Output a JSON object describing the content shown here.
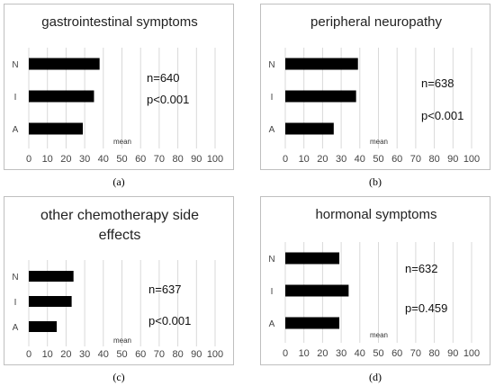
{
  "chart_data": [
    {
      "type": "bar",
      "orientation": "horizontal",
      "title": "gastrointestinal symptoms",
      "categories": [
        "N",
        "I",
        "A"
      ],
      "values": [
        38,
        35,
        29
      ],
      "xlim": [
        0,
        100
      ],
      "xticks": [
        0,
        10,
        20,
        30,
        40,
        50,
        60,
        70,
        80,
        90,
        100
      ],
      "xlabel": "mean",
      "grid": "vertical",
      "annotations": [
        "n=640",
        "p<0.001"
      ],
      "caption": "(a)"
    },
    {
      "type": "bar",
      "orientation": "horizontal",
      "title": "peripheral neuropathy",
      "categories": [
        "N",
        "I",
        "A"
      ],
      "values": [
        39,
        38,
        26
      ],
      "xlim": [
        0,
        100
      ],
      "xticks": [
        0,
        10,
        20,
        30,
        40,
        50,
        60,
        70,
        80,
        90,
        100
      ],
      "xlabel": "mean",
      "grid": "vertical",
      "annotations": [
        "n=638",
        "p<0.001"
      ],
      "caption": "(b)"
    },
    {
      "type": "bar",
      "orientation": "horizontal",
      "title": [
        "other chemotherapy side",
        "effects"
      ],
      "categories": [
        "N",
        "I",
        "A"
      ],
      "values": [
        24,
        23,
        15
      ],
      "xlim": [
        0,
        100
      ],
      "xticks": [
        0,
        10,
        20,
        30,
        40,
        50,
        60,
        70,
        80,
        90,
        100
      ],
      "xlabel": "mean",
      "grid": "vertical",
      "annotations": [
        "n=637",
        "p<0.001"
      ],
      "caption": "(c)"
    },
    {
      "type": "bar",
      "orientation": "horizontal",
      "title": "hormonal symptoms",
      "categories": [
        "N",
        "I",
        "A"
      ],
      "values": [
        29,
        34,
        29
      ],
      "xlim": [
        0,
        100
      ],
      "xticks": [
        0,
        10,
        20,
        30,
        40,
        50,
        60,
        70,
        80,
        90,
        100
      ],
      "xlabel": "mean",
      "grid": "vertical",
      "annotations": [
        "n=632",
        "p=0.459"
      ],
      "caption": "(d)"
    }
  ]
}
